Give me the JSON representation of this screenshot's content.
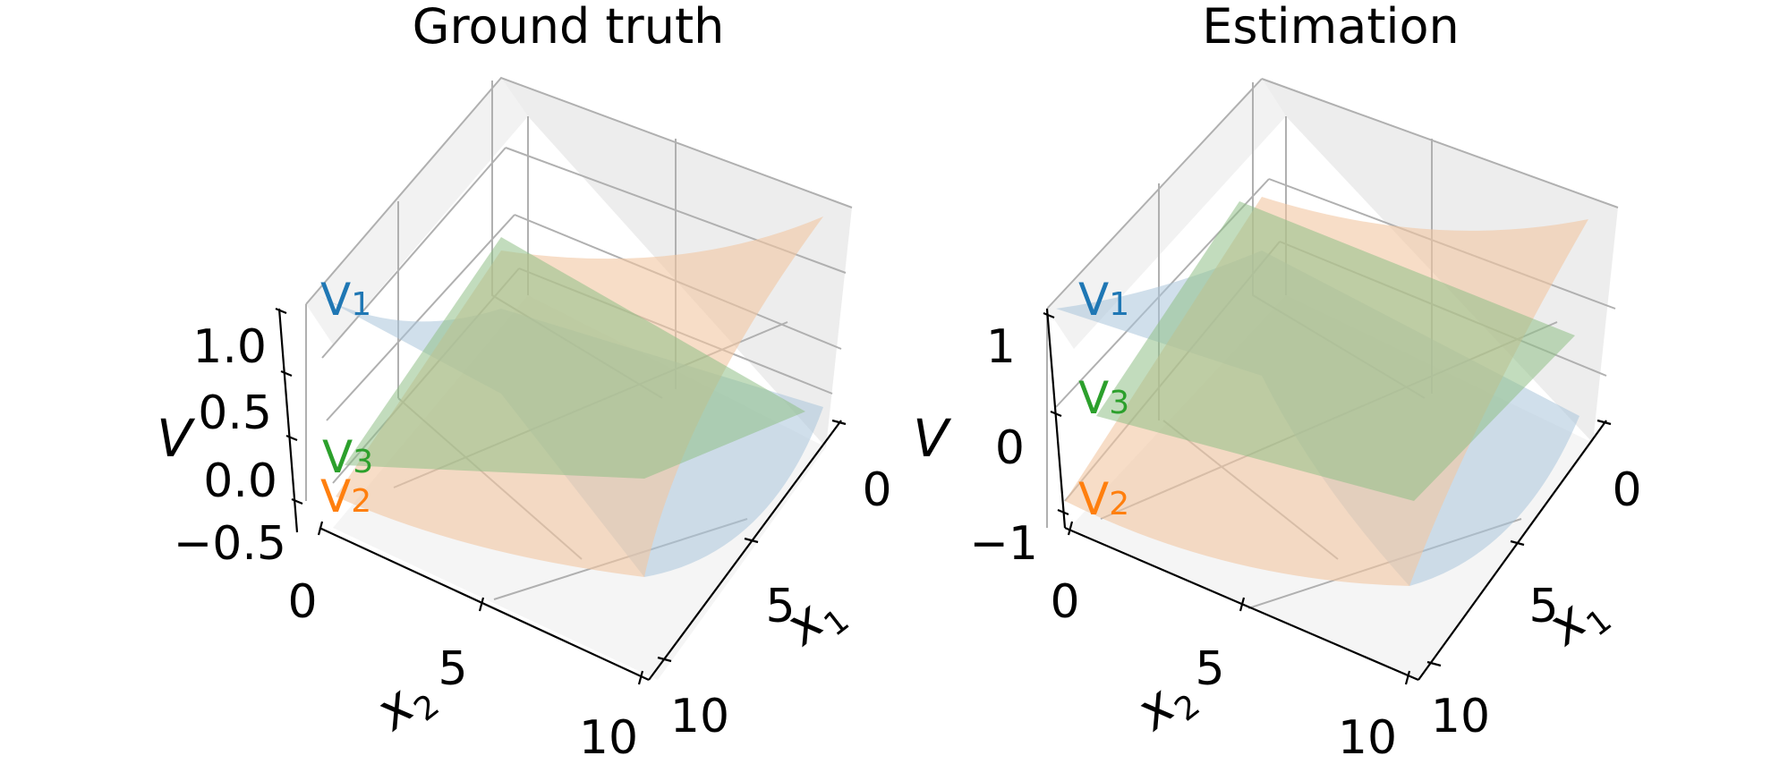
{
  "colors": {
    "V1": "#1f77b4",
    "V2": "#ff7f0e",
    "V3": "#2ca02c",
    "surface_V1": "#a9c4da",
    "surface_V2": "#f2c6a2",
    "surface_V3": "#8fbf86"
  },
  "chart_data": [
    {
      "type": "surface",
      "title": "Ground truth",
      "xlabel": "x",
      "xlabel_sub": "1",
      "ylabel": "x",
      "ylabel_sub": "2",
      "zlabel": "V",
      "xlim": [
        0,
        10
      ],
      "ylim": [
        0,
        10
      ],
      "zlim": [
        -0.5,
        1.2
      ],
      "xticks": [
        "0",
        "5",
        "10"
      ],
      "yticks": [
        "0",
        "5",
        "10"
      ],
      "zticks": [
        {
          "value": -0.5,
          "label": "−0.5"
        },
        {
          "value": 0.0,
          "label": "0.0"
        },
        {
          "value": 0.5,
          "label": "0.5"
        },
        {
          "value": 1.0,
          "label": "1.0"
        }
      ],
      "grid": true,
      "series": [
        {
          "name": "V",
          "sub": "1",
          "corners": {
            "x0y0": 1.0,
            "x10y0": -0.5,
            "x0y10": -0.5,
            "x10y10": -0.5
          }
        },
        {
          "name": "V",
          "sub": "2",
          "corners": {
            "x0y0": -0.5,
            "x10y0": 1.0,
            "x0y10": 1.0,
            "x10y10": -0.5
          }
        },
        {
          "name": "V",
          "sub": "3",
          "corners": {
            "x0y0": 0.05,
            "x10y0": 0.8,
            "x0y10": 0.2,
            "x10y10": 0.7
          }
        }
      ]
    },
    {
      "type": "surface",
      "title": "Estimation",
      "xlabel": "x",
      "xlabel_sub": "1",
      "ylabel": "x",
      "ylabel_sub": "2",
      "zlabel": "V",
      "xlim": [
        0,
        10
      ],
      "ylim": [
        0,
        10
      ],
      "zlim": [
        -1.0,
        1.4
      ],
      "xticks": [
        "0",
        "5",
        "10"
      ],
      "yticks": [
        "0",
        "5",
        "10"
      ],
      "zticks": [
        {
          "value": -1,
          "label": "−1"
        },
        {
          "value": 0,
          "label": "0"
        },
        {
          "value": 1,
          "label": "1"
        }
      ],
      "grid": true,
      "series": [
        {
          "name": "V",
          "sub": "1",
          "corners": {
            "x0y0": 1.1,
            "x10y0": -0.9,
            "x0y10": -0.9,
            "x10y10": -0.2
          }
        },
        {
          "name": "V",
          "sub": "2",
          "corners": {
            "x0y0": -0.9,
            "x10y0": 1.3,
            "x0y10": 1.1,
            "x10y10": -0.9
          }
        },
        {
          "name": "V",
          "sub": "3",
          "corners": {
            "x0y0": 0.3,
            "x10y0": 1.2,
            "x0y10": 0.2,
            "x10y10": 0.8
          }
        }
      ]
    }
  ]
}
